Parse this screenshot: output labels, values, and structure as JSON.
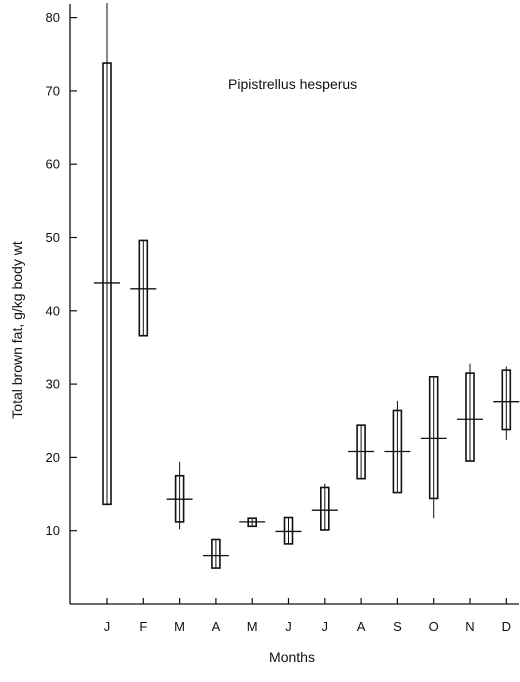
{
  "chart_data": {
    "type": "box",
    "annotation": "Pipistrellus hesperus",
    "xlabel": "Months",
    "ylabel": "Total brown fat,  g/kg body wt",
    "categories": [
      "J",
      "F",
      "M",
      "A",
      "M",
      "J",
      "J",
      "A",
      "S",
      "O",
      "N",
      "D"
    ],
    "yticks": [
      10,
      20,
      30,
      40,
      50,
      60,
      70,
      80
    ],
    "ylim": [
      0,
      82
    ],
    "grid": false,
    "series": [
      {
        "values": [
          {
            "mean": 43.8,
            "box_low": 13.6,
            "box_high": 73.8,
            "range_low": 13.6,
            "range_high": 82
          },
          {
            "mean": 43.0,
            "box_low": 36.6,
            "box_high": 49.6,
            "range_low": 36.6,
            "range_high": 49.6
          },
          {
            "mean": 14.3,
            "box_low": 11.2,
            "box_high": 17.5,
            "range_low": 10.2,
            "range_high": 19.4
          },
          {
            "mean": 6.6,
            "box_low": 4.9,
            "box_high": 8.8,
            "range_low": 4.9,
            "range_high": 8.8
          },
          {
            "mean": 11.2,
            "box_low": 10.6,
            "box_high": 11.7,
            "range_low": 10.6,
            "range_high": 11.7
          },
          {
            "mean": 9.9,
            "box_low": 8.2,
            "box_high": 11.8,
            "range_low": 8.2,
            "range_high": 11.8
          },
          {
            "mean": 12.8,
            "box_low": 10.1,
            "box_high": 15.9,
            "range_low": 10.1,
            "range_high": 16.4
          },
          {
            "mean": 20.8,
            "box_low": 17.1,
            "box_high": 24.4,
            "range_low": 17.1,
            "range_high": 24.4
          },
          {
            "mean": 20.8,
            "box_low": 15.2,
            "box_high": 26.4,
            "range_low": 15.2,
            "range_high": 27.7
          },
          {
            "mean": 22.6,
            "box_low": 14.4,
            "box_high": 31.0,
            "range_low": 11.7,
            "range_high": 31.0
          },
          {
            "mean": 25.2,
            "box_low": 19.5,
            "box_high": 31.5,
            "range_low": 19.5,
            "range_high": 32.8
          },
          {
            "mean": 27.6,
            "box_low": 23.8,
            "box_high": 31.9,
            "range_low": 22.4,
            "range_high": 32.4
          }
        ]
      }
    ],
    "colors": {
      "ink": "#111111",
      "background": "#ffffff"
    }
  }
}
